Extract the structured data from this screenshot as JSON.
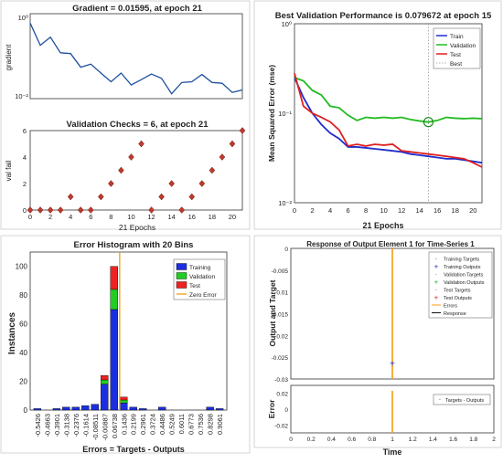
{
  "chart_data": [
    {
      "id": "gradient",
      "type": "line",
      "title": "Gradient = 0.01595, at epoch 21",
      "ylabel": "gradient",
      "yscale": "log",
      "ylim": [
        0.01,
        1
      ],
      "xlim": [
        0,
        21
      ],
      "x": [
        0,
        1,
        2,
        3,
        4,
        5,
        6,
        7,
        8,
        9,
        10,
        11,
        12,
        13,
        14,
        15,
        16,
        17,
        18,
        19,
        20,
        21
      ],
      "values": [
        0.6,
        0.18,
        0.28,
        0.12,
        0.115,
        0.055,
        0.065,
        0.04,
        0.025,
        0.04,
        0.021,
        0.028,
        0.038,
        0.03,
        0.013,
        0.024,
        0.025,
        0.037,
        0.024,
        0.023,
        0.014,
        0.016
      ],
      "xticks": [],
      "yticks": [
        "10⁰",
        "10⁻²"
      ],
      "color": "#1f4fa0"
    },
    {
      "id": "val_checks",
      "type": "scatter",
      "title": "Validation Checks = 6, at epoch 21",
      "ylabel": "val fail",
      "xlabel": "21 Epochs",
      "xlim": [
        0,
        21
      ],
      "ylim": [
        0,
        6
      ],
      "x": [
        0,
        1,
        2,
        3,
        4,
        5,
        6,
        7,
        8,
        9,
        10,
        11,
        12,
        13,
        14,
        15,
        16,
        17,
        18,
        19,
        20,
        21
      ],
      "values": [
        0,
        0,
        0,
        0,
        1,
        0,
        0,
        1,
        2,
        3,
        4,
        5,
        0,
        1,
        2,
        0,
        1,
        2,
        3,
        4,
        5,
        6
      ],
      "xticks": [
        "0",
        "2",
        "4",
        "6",
        "8",
        "10",
        "12",
        "14",
        "16",
        "18",
        "20"
      ],
      "yticks": [
        "0",
        "2",
        "4",
        "6"
      ],
      "color": "#c0392b"
    },
    {
      "id": "performance",
      "type": "line",
      "title": "Best Validation Performance is 0.079672 at epoch 15",
      "xlabel": "21 Epochs",
      "ylabel": "Mean Squared Error  (mse)",
      "yscale": "log",
      "ylim": [
        0.01,
        1
      ],
      "xlim": [
        0,
        21
      ],
      "xticks": [
        "0",
        "2",
        "4",
        "6",
        "8",
        "10",
        "12",
        "14",
        "16",
        "18",
        "20"
      ],
      "yticks": [
        "10⁰",
        "10⁻¹",
        "10⁻²"
      ],
      "best_epoch": 15,
      "best_value": 0.079672,
      "series": [
        {
          "name": "Train",
          "color": "#1f2fcc",
          "values": [
            0.25,
            0.15,
            0.1,
            0.075,
            0.06,
            0.052,
            0.042,
            0.042,
            0.041,
            0.04,
            0.039,
            0.038,
            0.037,
            0.035,
            0.034,
            0.033,
            0.032,
            0.031,
            0.031,
            0.03,
            0.029,
            0.028
          ]
        },
        {
          "name": "Validation",
          "color": "#22bb22",
          "values": [
            0.25,
            0.23,
            0.18,
            0.16,
            0.12,
            0.115,
            0.095,
            0.083,
            0.09,
            0.088,
            0.09,
            0.088,
            0.09,
            0.085,
            0.082,
            0.0797,
            0.083,
            0.09,
            0.088,
            0.087,
            0.088,
            0.087
          ]
        },
        {
          "name": "Test",
          "color": "#e02020",
          "values": [
            0.28,
            0.12,
            0.1,
            0.09,
            0.08,
            0.065,
            0.043,
            0.045,
            0.043,
            0.045,
            0.044,
            0.045,
            0.038,
            0.037,
            0.036,
            0.035,
            0.034,
            0.033,
            0.032,
            0.031,
            0.028,
            0.025
          ]
        }
      ],
      "legend": [
        "Train",
        "Validation",
        "Test",
        "Best"
      ]
    },
    {
      "id": "histogram",
      "type": "bar",
      "title": "Error Histogram with 20 Bins",
      "xlabel": "Errors = Targets - Outputs",
      "ylabel": "Instances",
      "ylim": [
        0,
        110
      ],
      "yticks": [
        "0",
        "20",
        "40",
        "60",
        "80",
        "100"
      ],
      "zero_error_bin": 9,
      "categories": [
        "-0.5426",
        "-0.4663",
        "-0.3901",
        "-0.3138",
        "-0.2376",
        "-0.1614",
        "-0.08511",
        "-0.00887",
        "0.06738",
        "0.1436",
        "0.2199",
        "0.2961",
        "0.3724",
        "0.4486",
        "0.5249",
        "0.6011",
        "0.6773",
        "0.7536",
        "0.8298",
        "0.9061"
      ],
      "series": [
        {
          "name": "Training",
          "color": "#1c2fe0",
          "values": [
            1,
            0,
            1,
            2,
            2,
            3,
            4,
            18,
            70,
            5,
            2,
            1,
            0,
            2,
            0,
            0,
            0,
            0,
            2,
            1
          ]
        },
        {
          "name": "Validation",
          "color": "#22cc22",
          "values": [
            0,
            0,
            0,
            0,
            0,
            0,
            0,
            3,
            14,
            2,
            0,
            0,
            0,
            0,
            0,
            0,
            0,
            0,
            0,
            0
          ]
        },
        {
          "name": "Test",
          "color": "#ee2222",
          "values": [
            0,
            0,
            0,
            0,
            0,
            0,
            0,
            3,
            16,
            2,
            0,
            0,
            0,
            0,
            0,
            0,
            0,
            0,
            0,
            0
          ]
        }
      ],
      "legend": [
        "Training",
        "Validation",
        "Test",
        "Zero Error"
      ]
    },
    {
      "id": "response",
      "type": "scatter",
      "title": "Response of Output Element 1 for Time-Series 1",
      "ylabel": "Output and Target",
      "xlim": [
        0,
        2
      ],
      "ylim": [
        -0.03,
        0
      ],
      "xticks": [
        "0",
        "0.2",
        "0.4",
        "0.6",
        "0.8",
        "1",
        "1.2",
        "1.4",
        "1.6",
        "1.8",
        "2"
      ],
      "yticks": [
        "0",
        "-0.005",
        "-0.01",
        "-0.015",
        "-0.02",
        "-0.025",
        "-0.03"
      ],
      "point": {
        "x": 1,
        "y": -0.0265
      },
      "legend": [
        "Training Targets",
        "Training Outputs",
        "Validation Targets",
        "Validation Outputs",
        "Test Targets",
        "Test Outputs",
        "Errors",
        "Response"
      ]
    },
    {
      "id": "response_error",
      "type": "line",
      "xlabel": "Time",
      "ylabel": "Error",
      "xlim": [
        0,
        2
      ],
      "ylim": [
        -0.03,
        0.03
      ],
      "xticks": [
        "0",
        "0.2",
        "0.4",
        "0.6",
        "0.8",
        "1",
        "1.2",
        "1.4",
        "1.6",
        "1.8",
        "2"
      ],
      "yticks": [
        "0.02",
        "0",
        "-0.02"
      ],
      "error_at": 1,
      "legend": [
        "Targets - Outputs"
      ]
    }
  ]
}
